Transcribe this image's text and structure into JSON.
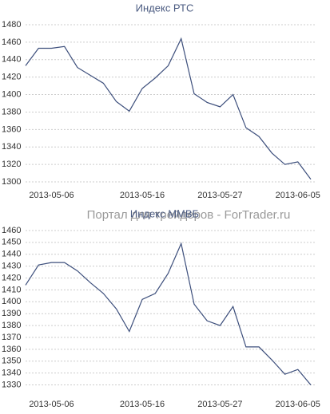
{
  "chart_data": [
    {
      "type": "line",
      "title": "Индекс РТС",
      "color": "#3d4f7c",
      "grid": true,
      "categories": [
        null,
        null,
        "2013-05-06",
        null,
        null,
        null,
        null,
        null,
        null,
        "2013-05-16",
        null,
        null,
        null,
        null,
        null,
        "2013-05-27",
        null,
        null,
        null,
        null,
        null,
        "2013-06-05",
        null
      ],
      "values": [
        1433,
        1453,
        1453,
        1455,
        1431,
        1422,
        1413,
        1392,
        1381,
        1407,
        1419,
        1433,
        1464,
        1401,
        1391,
        1386,
        1400,
        1362,
        1352,
        1333,
        1320,
        1323,
        1303
      ],
      "ylim": [
        1290,
        1490
      ],
      "yticks": [
        1300,
        1320,
        1340,
        1360,
        1380,
        1400,
        1420,
        1440,
        1460,
        1480
      ]
    },
    {
      "type": "line",
      "title": "Индекс ММВБ",
      "color": "#3d4f7c",
      "grid": true,
      "categories": [
        null,
        null,
        "2013-05-06",
        null,
        null,
        null,
        null,
        null,
        null,
        "2013-05-16",
        null,
        null,
        null,
        null,
        null,
        "2013-05-27",
        null,
        null,
        null,
        null,
        null,
        "2013-06-05",
        null
      ],
      "values": [
        1414,
        1431,
        1433,
        1433,
        1426,
        1416,
        1407,
        1394,
        1375,
        1402,
        1407,
        1424,
        1449,
        1398,
        1384,
        1380,
        1396,
        1362,
        1362,
        1351,
        1339,
        1343,
        1330
      ],
      "ylim": [
        1325,
        1465
      ],
      "yticks": [
        1330,
        1340,
        1350,
        1360,
        1370,
        1380,
        1390,
        1400,
        1410,
        1420,
        1430,
        1440,
        1450,
        1460
      ]
    }
  ],
  "watermark": "Портал для трейдеров - ForTrader.ru"
}
